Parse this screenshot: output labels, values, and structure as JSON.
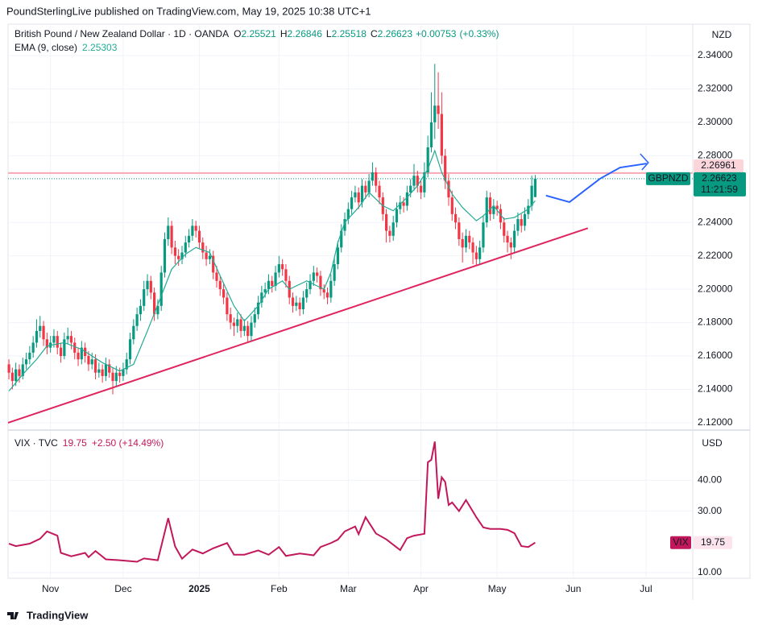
{
  "header": {
    "published": "PoundSterlingLive published on TradingView.com, May 19, 2025 10:38 UTC+1"
  },
  "chart_data": [
    {
      "type": "candlestick",
      "title": "British Pound / New Zealand Dollar · 1D · OANDA",
      "ohlc_labels": [
        "O",
        "H",
        "L",
        "C"
      ],
      "change": "+0.00753",
      "change_pct": "(+0.33%)",
      "currency": "NZD",
      "symbol": "GBPNZD",
      "countdown": "11:21:59",
      "up_color": "#089981",
      "down_color": "#f23645",
      "xlim": [
        -0.25,
        197.5
      ],
      "ylim": [
        2.1161,
        2.3588
      ],
      "yticks": [
        {
          "value": 2.34,
          "label": "2.34000"
        },
        {
          "value": 2.32,
          "label": "2.32000"
        },
        {
          "value": 2.3,
          "label": "2.30000"
        },
        {
          "value": 2.28,
          "label": "2.28000"
        },
        {
          "value": 2.24,
          "label": "2.24000"
        },
        {
          "value": 2.22,
          "label": "2.22000"
        },
        {
          "value": 2.2,
          "label": "2.20000"
        },
        {
          "value": 2.18,
          "label": "2.18000"
        },
        {
          "value": 2.16,
          "label": "2.16000"
        },
        {
          "value": 2.14,
          "label": "2.14000"
        },
        {
          "value": 2.12,
          "label": "2.12000"
        }
      ],
      "xticks": [
        {
          "value": 12,
          "label": "Nov"
        },
        {
          "value": 33,
          "label": "Dec"
        },
        {
          "value": 55,
          "label": "2025"
        },
        {
          "value": 78,
          "label": "Feb"
        },
        {
          "value": 98,
          "label": "Mar"
        },
        {
          "value": 119,
          "label": "Apr"
        },
        {
          "value": 141,
          "label": "May"
        },
        {
          "value": 163,
          "label": "Jun"
        },
        {
          "value": 184,
          "label": "Jul"
        }
      ],
      "candles": [
        [
          2.155,
          2.158,
          2.146,
          2.15
        ],
        [
          2.15,
          2.153,
          2.14,
          2.145
        ],
        [
          2.145,
          2.156,
          2.142,
          2.152
        ],
        [
          2.152,
          2.155,
          2.144,
          2.148
        ],
        [
          2.148,
          2.159,
          2.146,
          2.155
        ],
        [
          2.155,
          2.162,
          2.152,
          2.158
        ],
        [
          2.158,
          2.166,
          2.155,
          2.162
        ],
        [
          2.162,
          2.172,
          2.159,
          2.168
        ],
        [
          2.168,
          2.182,
          2.165,
          2.175
        ],
        [
          2.175,
          2.184,
          2.171,
          2.178
        ],
        [
          2.178,
          2.181,
          2.166,
          2.17
        ],
        [
          2.17,
          2.174,
          2.161,
          2.165
        ],
        [
          2.165,
          2.172,
          2.162,
          2.168
        ],
        [
          2.168,
          2.176,
          2.165,
          2.172
        ],
        [
          2.172,
          2.175,
          2.161,
          2.165
        ],
        [
          2.165,
          2.168,
          2.156,
          2.16
        ],
        [
          2.16,
          2.174,
          2.158,
          2.17
        ],
        [
          2.17,
          2.177,
          2.167,
          2.172
        ],
        [
          2.172,
          2.175,
          2.164,
          2.168
        ],
        [
          2.168,
          2.171,
          2.158,
          2.162
        ],
        [
          2.162,
          2.165,
          2.154,
          2.158
        ],
        [
          2.158,
          2.169,
          2.155,
          2.165
        ],
        [
          2.165,
          2.168,
          2.156,
          2.16
        ],
        [
          2.16,
          2.163,
          2.151,
          2.155
        ],
        [
          2.155,
          2.162,
          2.152,
          2.158
        ],
        [
          2.158,
          2.161,
          2.146,
          2.15
        ],
        [
          2.15,
          2.156,
          2.147,
          2.152
        ],
        [
          2.152,
          2.155,
          2.144,
          2.148
        ],
        [
          2.148,
          2.159,
          2.145,
          2.155
        ],
        [
          2.155,
          2.158,
          2.147,
          2.15
        ],
        [
          2.15,
          2.153,
          2.137,
          2.145
        ],
        [
          2.145,
          2.154,
          2.142,
          2.15
        ],
        [
          2.15,
          2.153,
          2.144,
          2.148
        ],
        [
          2.148,
          2.156,
          2.145,
          2.152
        ],
        [
          2.152,
          2.162,
          2.149,
          2.158
        ],
        [
          2.158,
          2.174,
          2.155,
          2.17
        ],
        [
          2.17,
          2.182,
          2.167,
          2.178
        ],
        [
          2.178,
          2.189,
          2.175,
          2.185
        ],
        [
          2.185,
          2.194,
          2.181,
          2.19
        ],
        [
          2.19,
          2.205,
          2.187,
          2.2
        ],
        [
          2.2,
          2.209,
          2.196,
          2.205
        ],
        [
          2.205,
          2.208,
          2.194,
          2.198
        ],
        [
          2.198,
          2.201,
          2.181,
          2.185
        ],
        [
          2.185,
          2.194,
          2.182,
          2.19
        ],
        [
          2.19,
          2.214,
          2.187,
          2.21
        ],
        [
          2.21,
          2.234,
          2.207,
          2.23
        ],
        [
          2.23,
          2.243,
          2.226,
          2.238
        ],
        [
          2.238,
          2.241,
          2.221,
          2.225
        ],
        [
          2.225,
          2.229,
          2.215,
          2.22
        ],
        [
          2.22,
          2.224,
          2.214,
          2.218
        ],
        [
          2.218,
          2.226,
          2.215,
          2.222
        ],
        [
          2.222,
          2.232,
          2.219,
          2.228
        ],
        [
          2.228,
          2.236,
          2.225,
          2.232
        ],
        [
          2.232,
          2.242,
          2.229,
          2.238
        ],
        [
          2.238,
          2.241,
          2.231,
          2.235
        ],
        [
          2.235,
          2.238,
          2.224,
          2.228
        ],
        [
          2.228,
          2.231,
          2.218,
          2.222
        ],
        [
          2.222,
          2.226,
          2.214,
          2.218
        ],
        [
          2.218,
          2.224,
          2.215,
          2.22
        ],
        [
          2.22,
          2.223,
          2.206,
          2.21
        ],
        [
          2.21,
          2.214,
          2.201,
          2.205
        ],
        [
          2.205,
          2.208,
          2.196,
          2.2
        ],
        [
          2.2,
          2.204,
          2.191,
          2.195
        ],
        [
          2.195,
          2.198,
          2.181,
          2.185
        ],
        [
          2.185,
          2.189,
          2.176,
          2.18
        ],
        [
          2.18,
          2.183,
          2.172,
          2.178
        ],
        [
          2.178,
          2.186,
          2.174,
          2.182
        ],
        [
          2.182,
          2.185,
          2.171,
          2.175
        ],
        [
          2.175,
          2.182,
          2.172,
          2.178
        ],
        [
          2.178,
          2.181,
          2.168,
          2.172
        ],
        [
          2.172,
          2.184,
          2.169,
          2.18
        ],
        [
          2.18,
          2.189,
          2.177,
          2.185
        ],
        [
          2.185,
          2.196,
          2.182,
          2.192
        ],
        [
          2.192,
          2.202,
          2.189,
          2.198
        ],
        [
          2.198,
          2.204,
          2.195,
          2.2
        ],
        [
          2.2,
          2.209,
          2.197,
          2.205
        ],
        [
          2.205,
          2.208,
          2.198,
          2.202
        ],
        [
          2.202,
          2.214,
          2.199,
          2.21
        ],
        [
          2.21,
          2.22,
          2.207,
          2.215
        ],
        [
          2.215,
          2.218,
          2.208,
          2.212
        ],
        [
          2.212,
          2.215,
          2.201,
          2.205
        ],
        [
          2.205,
          2.208,
          2.191,
          2.195
        ],
        [
          2.195,
          2.198,
          2.186,
          2.19
        ],
        [
          2.19,
          2.196,
          2.187,
          2.192
        ],
        [
          2.192,
          2.195,
          2.184,
          2.188
        ],
        [
          2.188,
          2.199,
          2.185,
          2.195
        ],
        [
          2.195,
          2.204,
          2.192,
          2.2
        ],
        [
          2.2,
          2.209,
          2.197,
          2.205
        ],
        [
          2.205,
          2.214,
          2.202,
          2.21
        ],
        [
          2.21,
          2.213,
          2.204,
          2.208
        ],
        [
          2.208,
          2.211,
          2.196,
          2.2
        ],
        [
          2.2,
          2.203,
          2.194,
          2.198
        ],
        [
          2.198,
          2.201,
          2.191,
          2.195
        ],
        [
          2.195,
          2.209,
          2.192,
          2.205
        ],
        [
          2.205,
          2.219,
          2.202,
          2.215
        ],
        [
          2.215,
          2.229,
          2.212,
          2.225
        ],
        [
          2.225,
          2.239,
          2.222,
          2.235
        ],
        [
          2.235,
          2.246,
          2.232,
          2.242
        ],
        [
          2.242,
          2.252,
          2.239,
          2.248
        ],
        [
          2.248,
          2.259,
          2.245,
          2.255
        ],
        [
          2.255,
          2.262,
          2.252,
          2.258
        ],
        [
          2.258,
          2.261,
          2.248,
          2.252
        ],
        [
          2.252,
          2.266,
          2.249,
          2.262
        ],
        [
          2.262,
          2.265,
          2.254,
          2.258
        ],
        [
          2.258,
          2.269,
          2.255,
          2.265
        ],
        [
          2.265,
          2.276,
          2.262,
          2.27
        ],
        [
          2.27,
          2.273,
          2.258,
          2.262
        ],
        [
          2.262,
          2.265,
          2.251,
          2.255
        ],
        [
          2.255,
          2.258,
          2.241,
          2.245
        ],
        [
          2.245,
          2.248,
          2.228,
          2.235
        ],
        [
          2.235,
          2.238,
          2.228,
          2.232
        ],
        [
          2.232,
          2.244,
          2.229,
          2.24
        ],
        [
          2.24,
          2.252,
          2.237,
          2.248
        ],
        [
          2.248,
          2.256,
          2.245,
          2.252
        ],
        [
          2.252,
          2.255,
          2.246,
          2.25
        ],
        [
          2.25,
          2.262,
          2.247,
          2.258
        ],
        [
          2.258,
          2.266,
          2.255,
          2.262
        ],
        [
          2.262,
          2.275,
          2.259,
          2.268
        ],
        [
          2.268,
          2.271,
          2.258,
          2.262
        ],
        [
          2.262,
          2.265,
          2.254,
          2.258
        ],
        [
          2.258,
          2.276,
          2.255,
          2.27
        ],
        [
          2.27,
          2.292,
          2.267,
          2.285
        ],
        [
          2.285,
          2.318,
          2.282,
          2.3
        ],
        [
          2.3,
          2.335,
          2.29,
          2.31
        ],
        [
          2.31,
          2.33,
          2.296,
          2.305
        ],
        [
          2.305,
          2.318,
          2.275,
          2.28
        ],
        [
          2.28,
          2.284,
          2.26,
          2.265
        ],
        [
          2.265,
          2.269,
          2.25,
          2.255
        ],
        [
          2.255,
          2.259,
          2.241,
          2.245
        ],
        [
          2.245,
          2.249,
          2.236,
          2.24
        ],
        [
          2.24,
          2.243,
          2.226,
          2.23
        ],
        [
          2.23,
          2.234,
          2.216,
          2.225
        ],
        [
          2.225,
          2.236,
          2.222,
          2.232
        ],
        [
          2.232,
          2.235,
          2.224,
          2.228
        ],
        [
          2.228,
          2.231,
          2.215,
          2.222
        ],
        [
          2.222,
          2.226,
          2.214,
          2.218
        ],
        [
          2.218,
          2.229,
          2.215,
          2.225
        ],
        [
          2.225,
          2.244,
          2.222,
          2.24
        ],
        [
          2.24,
          2.259,
          2.237,
          2.255
        ],
        [
          2.255,
          2.258,
          2.241,
          2.245
        ],
        [
          2.245,
          2.254,
          2.242,
          2.25
        ],
        [
          2.25,
          2.253,
          2.244,
          2.248
        ],
        [
          2.248,
          2.251,
          2.236,
          2.24
        ],
        [
          2.24,
          2.243,
          2.228,
          2.232
        ],
        [
          2.232,
          2.235,
          2.222,
          2.228
        ],
        [
          2.228,
          2.231,
          2.218,
          2.225
        ],
        [
          2.225,
          2.239,
          2.222,
          2.235
        ],
        [
          2.235,
          2.246,
          2.232,
          2.242
        ],
        [
          2.242,
          2.245,
          2.234,
          2.238
        ],
        [
          2.238,
          2.249,
          2.235,
          2.245
        ],
        [
          2.245,
          2.254,
          2.242,
          2.25
        ],
        [
          2.25,
          2.268,
          2.247,
          2.262
        ],
        [
          2.25521,
          2.26846,
          2.25518,
          2.26623
        ]
      ],
      "indicator": {
        "name": "EMA (9, close)",
        "color": "#22ab94",
        "x": [
          0,
          4,
          8,
          11,
          16,
          21,
          27,
          32,
          36,
          40,
          44,
          47,
          51,
          54,
          58,
          61,
          65,
          68,
          72,
          75,
          79,
          81,
          86,
          91,
          93,
          95,
          97,
          101,
          104,
          108,
          111,
          115,
          118,
          121,
          123,
          125,
          128,
          131,
          135,
          137,
          140,
          143,
          146,
          150,
          152
        ],
        "values": [
          2.139,
          2.149,
          2.158,
          2.166,
          2.168,
          2.164,
          2.156,
          2.151,
          2.155,
          2.175,
          2.196,
          2.212,
          2.221,
          2.225,
          2.222,
          2.208,
          2.19,
          2.181,
          2.19,
          2.2,
          2.205,
          2.2,
          2.205,
          2.2,
          2.21,
          2.228,
          2.24,
          2.249,
          2.258,
          2.25,
          2.247,
          2.255,
          2.262,
          2.272,
          2.283,
          2.27,
          2.257,
          2.249,
          2.241,
          2.244,
          2.25,
          2.242,
          2.243,
          2.248,
          2.25303
        ]
      },
      "level": {
        "value": 2.26961,
        "color": "#f7a8b4"
      },
      "trendline": {
        "x": [
          -0.25,
          167.2
        ],
        "values": [
          2.12,
          2.2366
        ],
        "color": "#e0245e"
      },
      "projection": {
        "x": [
          155.1,
          161.9,
          170.7,
          176.5,
          184.2
        ],
        "values": [
          2.2561,
          2.2522,
          2.2662,
          2.2729,
          2.2753
        ],
        "color": "#2962ff"
      }
    },
    {
      "type": "line",
      "title": "VIX · TVC",
      "change": "+2.50 (+14.49%)",
      "currency": "USD",
      "symbol": "VIX",
      "color": "#c2185b",
      "xlim": [
        -0.25,
        197.5
      ],
      "ylim": [
        8.4,
        56.1
      ],
      "yticks": [
        {
          "value": 10,
          "label": "10.00"
        },
        {
          "value": 30,
          "label": "30.00"
        },
        {
          "value": 40,
          "label": "40.00"
        }
      ],
      "x": [
        0,
        2,
        6,
        9,
        11,
        14,
        15,
        18,
        22,
        23,
        25,
        28,
        32,
        37,
        39,
        43,
        46,
        48,
        50,
        53,
        56,
        59,
        63,
        65,
        68,
        72,
        75,
        78,
        80,
        84,
        88,
        90,
        93,
        95,
        97,
        100,
        101,
        103,
        106,
        109,
        113,
        115,
        117,
        120,
        121,
        122,
        123,
        124,
        125,
        126,
        127,
        128,
        130,
        132,
        135,
        137,
        139,
        142,
        144,
        146,
        148,
        150,
        152
      ],
      "values": [
        19.4,
        18.6,
        19.4,
        21,
        23.4,
        22,
        16.4,
        15.3,
        16.4,
        15,
        17,
        14.3,
        14,
        13.5,
        14.6,
        14,
        27.7,
        18.5,
        14.5,
        17.5,
        16.2,
        17.9,
        19.6,
        15.8,
        15.8,
        17.2,
        15.8,
        18.3,
        15.4,
        16.2,
        15.6,
        18.3,
        19.6,
        20.7,
        23.4,
        25,
        22.5,
        28,
        22.7,
        20.8,
        17.3,
        21.2,
        22,
        22.6,
        45.9,
        46.7,
        52.6,
        34,
        41,
        39.5,
        32,
        32.8,
        30,
        33.6,
        28,
        24.7,
        24.2,
        24.2,
        23.9,
        22.8,
        18.6,
        18.3,
        19.75
      ]
    }
  ],
  "footer": {
    "brand": "TradingView"
  }
}
